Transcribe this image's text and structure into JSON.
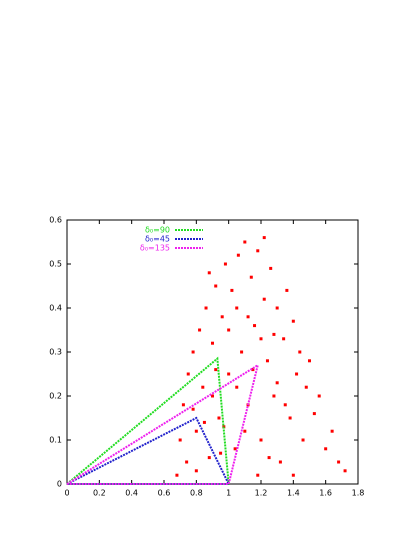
{
  "chart_data": {
    "type": "scatter",
    "xlim": [
      0,
      1.8
    ],
    "ylim": [
      0,
      0.6
    ],
    "xticks": [
      0,
      0.2,
      0.4,
      0.6,
      0.8,
      1,
      1.2,
      1.4,
      1.6,
      1.8
    ],
    "yticks": [
      0,
      0.1,
      0.2,
      0.3,
      0.4,
      0.5,
      0.6
    ],
    "points": {
      "color": "#ff0000",
      "x": [
        0.68,
        0.7,
        0.72,
        0.75,
        0.74,
        0.78,
        0.8,
        0.82,
        0.84,
        0.86,
        0.88,
        0.9,
        0.92,
        0.94,
        0.96,
        0.98,
        1.0,
        1.02,
        1.04,
        1.06,
        1.08,
        1.1,
        1.12,
        1.14,
        1.16,
        1.18,
        1.2,
        1.22,
        1.24,
        1.26,
        1.28,
        1.3,
        1.32,
        1.34,
        1.36,
        1.38,
        1.4,
        1.42,
        1.44,
        1.46,
        1.48,
        1.5,
        1.53,
        1.56,
        1.6,
        1.64,
        1.68,
        1.72,
        0.8,
        0.85,
        0.9,
        0.95,
        1.0,
        1.05,
        1.1,
        1.15,
        1.2,
        1.25,
        1.3,
        1.35,
        1.05,
        0.92,
        0.78,
        1.12,
        0.97,
        1.18,
        1.4,
        1.28,
        0.88,
        1.22
      ],
      "y": [
        0.02,
        0.1,
        0.18,
        0.25,
        0.05,
        0.3,
        0.12,
        0.35,
        0.22,
        0.4,
        0.06,
        0.32,
        0.45,
        0.15,
        0.38,
        0.5,
        0.25,
        0.44,
        0.08,
        0.52,
        0.3,
        0.55,
        0.18,
        0.47,
        0.36,
        0.53,
        0.1,
        0.42,
        0.28,
        0.49,
        0.2,
        0.4,
        0.05,
        0.33,
        0.44,
        0.15,
        0.37,
        0.25,
        0.3,
        0.1,
        0.22,
        0.28,
        0.16,
        0.2,
        0.08,
        0.12,
        0.05,
        0.03,
        0.03,
        0.14,
        0.2,
        0.07,
        0.35,
        0.4,
        0.12,
        0.26,
        0.33,
        0.06,
        0.23,
        0.18,
        0.22,
        0.26,
        0.17,
        0.38,
        0.13,
        0.02,
        0.02,
        0.34,
        0.48,
        0.56
      ]
    },
    "series": [
      {
        "name": "δ₀=90",
        "color": "#22dd22",
        "x": [
          0,
          0.93,
          1,
          0
        ],
        "y": [
          0,
          0.285,
          0,
          0
        ]
      },
      {
        "name": "δ₀=45",
        "color": "#2222cc",
        "x": [
          0,
          0.8,
          1,
          0
        ],
        "y": [
          0,
          0.15,
          0,
          0
        ]
      },
      {
        "name": "δ₀=135",
        "color": "#ee22ee",
        "x": [
          0,
          1.18,
          1,
          0
        ],
        "y": [
          0,
          0.27,
          0,
          0
        ]
      }
    ]
  }
}
